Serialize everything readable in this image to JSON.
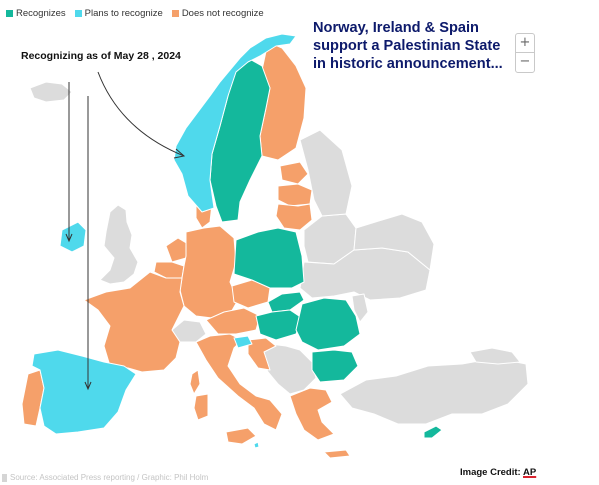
{
  "legend": {
    "items": [
      {
        "label": "Recognizes",
        "color": "#14b89c"
      },
      {
        "label": "Plans to recognize",
        "color": "#4fd9ec"
      },
      {
        "label": "Does not recognize",
        "color": "#f5a06a"
      }
    ]
  },
  "map": {
    "other_color": "#dcdcdc",
    "regions": [
      {
        "name": "Norway",
        "status": "plans"
      },
      {
        "name": "Sweden",
        "status": "recognizes"
      },
      {
        "name": "Finland",
        "status": "does-not"
      },
      {
        "name": "Estonia",
        "status": "does-not"
      },
      {
        "name": "Latvia",
        "status": "does-not"
      },
      {
        "name": "Lithuania",
        "status": "does-not"
      },
      {
        "name": "Denmark",
        "status": "does-not"
      },
      {
        "name": "Ireland",
        "status": "plans"
      },
      {
        "name": "United Kingdom",
        "status": "other"
      },
      {
        "name": "Netherlands",
        "status": "does-not"
      },
      {
        "name": "Belgium",
        "status": "does-not"
      },
      {
        "name": "Luxembourg",
        "status": "does-not"
      },
      {
        "name": "Germany",
        "status": "does-not"
      },
      {
        "name": "France",
        "status": "does-not"
      },
      {
        "name": "Switzerland",
        "status": "other"
      },
      {
        "name": "Austria",
        "status": "does-not"
      },
      {
        "name": "Czechia",
        "status": "does-not"
      },
      {
        "name": "Poland",
        "status": "recognizes"
      },
      {
        "name": "Slovakia",
        "status": "recognizes"
      },
      {
        "name": "Hungary",
        "status": "recognizes"
      },
      {
        "name": "Romania",
        "status": "recognizes"
      },
      {
        "name": "Bulgaria",
        "status": "recognizes"
      },
      {
        "name": "Slovenia",
        "status": "plans"
      },
      {
        "name": "Croatia",
        "status": "does-not"
      },
      {
        "name": "Italy",
        "status": "does-not"
      },
      {
        "name": "Spain",
        "status": "plans"
      },
      {
        "name": "Portugal",
        "status": "does-not"
      },
      {
        "name": "Greece",
        "status": "does-not"
      },
      {
        "name": "Cyprus",
        "status": "recognizes"
      },
      {
        "name": "Malta",
        "status": "plans"
      }
    ]
  },
  "annotation": {
    "text": "Recognizing as of May 28 , 2024"
  },
  "headline": {
    "text": "Norway, Ireland & Spain support a Palestinian State in historic announcement..."
  },
  "zoom": {
    "in_label": "+",
    "out_label": "−"
  },
  "source": {
    "text": "Source: Associated Press reporting / Graphic: Phil Holm"
  },
  "credit": {
    "prefix": "Image Credit: ",
    "brand": "AP"
  }
}
